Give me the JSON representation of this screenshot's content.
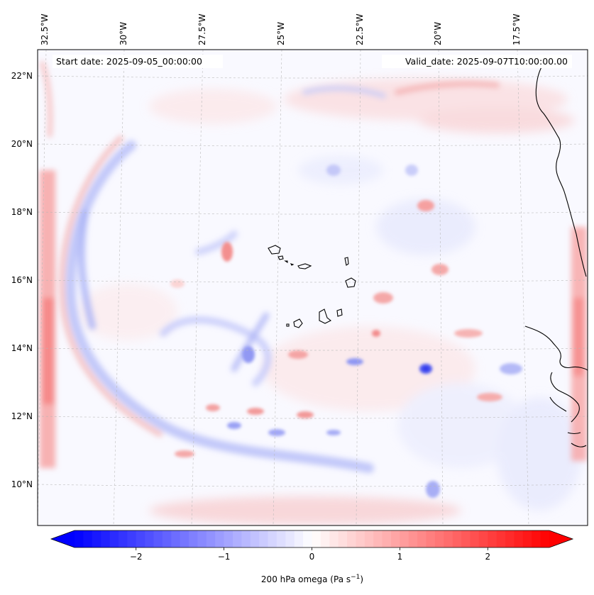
{
  "map": {
    "start_date_label": "Start date: 2025-09-05_00:00:00",
    "valid_date_label": "Valid_date: 2025-09-07T10:00:00.00",
    "lon_labels": [
      "32.5°W",
      "30°W",
      "27.5°W",
      "25°W",
      "22.5°W",
      "20°W",
      "17.5°W"
    ],
    "lat_labels": [
      "22°N",
      "20°N",
      "18°N",
      "16°N",
      "14°N",
      "12°N",
      "10°N"
    ],
    "gridlines": "dashed",
    "field": "200 hPa omega",
    "palette": "bwr"
  },
  "colorbar": {
    "label": "200 hPa omega (Pa s",
    "label_sup": "−1",
    "label_end": ")",
    "ticks": [
      "−2",
      "−1",
      "0",
      "1",
      "2"
    ],
    "tick_values": [
      -2,
      -1,
      0,
      1,
      2
    ],
    "range": [
      -2.7,
      2.7
    ],
    "extend": "both",
    "color_min": "#0000ff",
    "color_mid": "#ffffff",
    "color_max": "#ff0000"
  }
}
